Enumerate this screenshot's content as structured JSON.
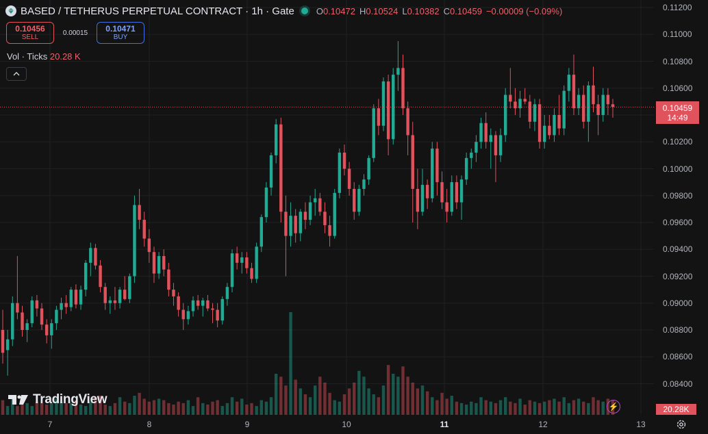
{
  "header": {
    "title": "BASED / TETHERUS PERPETUAL CONTRACT · 1h · Gate",
    "ohlc": {
      "o_label": "O",
      "o": "0.10472",
      "h_label": "H",
      "h": "0.10524",
      "l_label": "L",
      "l": "0.10382",
      "c_label": "C",
      "c": "0.10459",
      "change": "−0.00009 (−0.09%)"
    }
  },
  "trade": {
    "sell_price": "0.10456",
    "sell_label": "SELL",
    "spread": "0.00015",
    "buy_price": "0.10471",
    "buy_label": "BUY"
  },
  "volume_legend": {
    "label": "Vol · Ticks",
    "value": "20.28 K"
  },
  "price_label": {
    "price": "0.10459",
    "countdown": "14:49"
  },
  "volume_label": "20.28K",
  "y_axis": [
    "0.11200",
    "0.11000",
    "0.10800",
    "0.10600",
    "0.10400",
    "0.10200",
    "0.10000",
    "0.09800",
    "0.09600",
    "0.09400",
    "0.09200",
    "0.09000",
    "0.08800",
    "0.08600",
    "0.08400"
  ],
  "x_axis": [
    {
      "label": "7",
      "bold": false
    },
    {
      "label": "8",
      "bold": false
    },
    {
      "label": "9",
      "bold": false
    },
    {
      "label": "10",
      "bold": false
    },
    {
      "label": "11",
      "bold": true
    },
    {
      "label": "12",
      "bold": false
    },
    {
      "label": "13",
      "bold": false
    }
  ],
  "logo": "TradingView",
  "colors": {
    "up": "#22ab94",
    "down": "#e0525c",
    "background": "#131313",
    "grid": "#1f2024"
  },
  "chart_data": {
    "type": "candlestick",
    "price_axis_range": [
      0.083,
      0.1125
    ],
    "current_price": 0.10459,
    "candles": [
      [
        0.088,
        0.0895,
        0.0855,
        0.0863
      ],
      [
        0.0865,
        0.088,
        0.0846,
        0.0873
      ],
      [
        0.0873,
        0.0905,
        0.0868,
        0.09
      ],
      [
        0.09,
        0.0935,
        0.0888,
        0.0893
      ],
      [
        0.0893,
        0.0898,
        0.0875,
        0.088
      ],
      [
        0.088,
        0.0888,
        0.0871,
        0.0885
      ],
      [
        0.0885,
        0.0905,
        0.0882,
        0.0902
      ],
      [
        0.0902,
        0.0906,
        0.089,
        0.0896
      ],
      [
        0.0896,
        0.09,
        0.088,
        0.0884
      ],
      [
        0.0884,
        0.0888,
        0.087,
        0.0876
      ],
      [
        0.0876,
        0.0888,
        0.0866,
        0.0885
      ],
      [
        0.0885,
        0.0898,
        0.088,
        0.0895
      ],
      [
        0.0895,
        0.0904,
        0.0888,
        0.09
      ],
      [
        0.09,
        0.0906,
        0.0892,
        0.0897
      ],
      [
        0.0897,
        0.0912,
        0.0894,
        0.091
      ],
      [
        0.091,
        0.0914,
        0.0896,
        0.0899
      ],
      [
        0.0899,
        0.0913,
        0.0895,
        0.091
      ],
      [
        0.091,
        0.0932,
        0.0905,
        0.093
      ],
      [
        0.093,
        0.0945,
        0.092,
        0.0941
      ],
      [
        0.0941,
        0.0944,
        0.0925,
        0.0928
      ],
      [
        0.0928,
        0.0932,
        0.0908,
        0.0912
      ],
      [
        0.0912,
        0.0915,
        0.0895,
        0.09
      ],
      [
        0.09,
        0.0905,
        0.0892,
        0.0902
      ],
      [
        0.0902,
        0.0912,
        0.0895,
        0.09
      ],
      [
        0.09,
        0.0912,
        0.0896,
        0.091
      ],
      [
        0.091,
        0.092,
        0.0902,
        0.0903
      ],
      [
        0.0903,
        0.0922,
        0.09,
        0.092
      ],
      [
        0.092,
        0.098,
        0.0915,
        0.0973
      ],
      [
        0.0973,
        0.0985,
        0.0955,
        0.0962
      ],
      [
        0.0962,
        0.0968,
        0.0942,
        0.0948
      ],
      [
        0.0948,
        0.0955,
        0.093,
        0.0938
      ],
      [
        0.0938,
        0.0942,
        0.0915,
        0.0922
      ],
      [
        0.0922,
        0.0938,
        0.0918,
        0.0935
      ],
      [
        0.0935,
        0.094,
        0.092,
        0.0925
      ],
      [
        0.0925,
        0.093,
        0.0905,
        0.091
      ],
      [
        0.091,
        0.0915,
        0.0898,
        0.0905
      ],
      [
        0.0905,
        0.0908,
        0.089,
        0.0895
      ],
      [
        0.0895,
        0.09,
        0.088,
        0.0888
      ],
      [
        0.0888,
        0.0898,
        0.0884,
        0.0894
      ],
      [
        0.0894,
        0.0905,
        0.089,
        0.0902
      ],
      [
        0.0902,
        0.0906,
        0.0895,
        0.0898
      ],
      [
        0.0898,
        0.0904,
        0.089,
        0.0902
      ],
      [
        0.0902,
        0.0906,
        0.0894,
        0.0896
      ],
      [
        0.0896,
        0.09,
        0.0885,
        0.0895
      ],
      [
        0.0895,
        0.09,
        0.0882,
        0.0887
      ],
      [
        0.0887,
        0.0905,
        0.0884,
        0.0903
      ],
      [
        0.0903,
        0.0915,
        0.0898,
        0.0912
      ],
      [
        0.0912,
        0.094,
        0.0908,
        0.0937
      ],
      [
        0.0937,
        0.0942,
        0.0925,
        0.093
      ],
      [
        0.093,
        0.0938,
        0.0922,
        0.0934
      ],
      [
        0.0934,
        0.0938,
        0.0922,
        0.0926
      ],
      [
        0.0926,
        0.093,
        0.0915,
        0.0918
      ],
      [
        0.0918,
        0.0945,
        0.0915,
        0.0942
      ],
      [
        0.0942,
        0.0966,
        0.0938,
        0.0964
      ],
      [
        0.0964,
        0.099,
        0.096,
        0.0986
      ],
      [
        0.0986,
        0.1012,
        0.098,
        0.101
      ],
      [
        0.101,
        0.1037,
        0.1004,
        0.1033
      ],
      [
        0.1033,
        0.1038,
        0.096,
        0.0968
      ],
      [
        0.0968,
        0.098,
        0.092,
        0.095
      ],
      [
        0.095,
        0.0975,
        0.0942,
        0.0965
      ],
      [
        0.0965,
        0.097,
        0.0945,
        0.0952
      ],
      [
        0.0952,
        0.097,
        0.0946,
        0.0968
      ],
      [
        0.0968,
        0.0975,
        0.0955,
        0.0962
      ],
      [
        0.0962,
        0.098,
        0.0958,
        0.0975
      ],
      [
        0.0975,
        0.0985,
        0.0965,
        0.0978
      ],
      [
        0.0978,
        0.0982,
        0.0965,
        0.0968
      ],
      [
        0.0968,
        0.0975,
        0.0952,
        0.0958
      ],
      [
        0.0958,
        0.0965,
        0.0942,
        0.095
      ],
      [
        0.095,
        0.0985,
        0.0948,
        0.0982
      ],
      [
        0.0982,
        0.1015,
        0.0978,
        0.1012
      ],
      [
        0.1012,
        0.1018,
        0.0995,
        0.1
      ],
      [
        0.1,
        0.1005,
        0.098,
        0.0985
      ],
      [
        0.0985,
        0.099,
        0.0962,
        0.0968
      ],
      [
        0.0968,
        0.0988,
        0.0965,
        0.0985
      ],
      [
        0.0985,
        0.0996,
        0.098,
        0.0992
      ],
      [
        0.0992,
        0.101,
        0.0988,
        0.1008
      ],
      [
        0.1008,
        0.1048,
        0.1005,
        0.1045
      ],
      [
        0.1045,
        0.1052,
        0.1025,
        0.1032
      ],
      [
        0.1032,
        0.1068,
        0.1028,
        0.1065
      ],
      [
        0.1065,
        0.107,
        0.101,
        0.1022
      ],
      [
        0.1022,
        0.1075,
        0.1018,
        0.107
      ],
      [
        0.107,
        0.1095,
        0.1058,
        0.1075
      ],
      [
        0.1075,
        0.1085,
        0.104,
        0.1045
      ],
      [
        0.1045,
        0.105,
        0.101,
        0.1025
      ],
      [
        0.1025,
        0.1035,
        0.096,
        0.0985
      ],
      [
        0.0985,
        0.1,
        0.0955,
        0.0968
      ],
      [
        0.0968,
        0.1,
        0.0965,
        0.0988
      ],
      [
        0.0988,
        0.0992,
        0.097,
        0.0978
      ],
      [
        0.0978,
        0.102,
        0.0975,
        0.1015
      ],
      [
        0.1015,
        0.102,
        0.098,
        0.099
      ],
      [
        0.099,
        0.0998,
        0.097,
        0.0975
      ],
      [
        0.0975,
        0.0985,
        0.096,
        0.0968
      ],
      [
        0.0968,
        0.0995,
        0.0965,
        0.099
      ],
      [
        0.099,
        0.0995,
        0.097,
        0.0975
      ],
      [
        0.0975,
        0.0995,
        0.0962,
        0.0992
      ],
      [
        0.0992,
        0.1012,
        0.0988,
        0.1008
      ],
      [
        0.1008,
        0.1015,
        0.1,
        0.1012
      ],
      [
        0.1012,
        0.1025,
        0.1005,
        0.102
      ],
      [
        0.102,
        0.1038,
        0.1015,
        0.1034
      ],
      [
        0.1034,
        0.1042,
        0.1015,
        0.102
      ],
      [
        0.102,
        0.103,
        0.1,
        0.1025
      ],
      [
        0.1025,
        0.1028,
        0.099,
        0.101
      ],
      [
        0.101,
        0.103,
        0.1005,
        0.1025
      ],
      [
        0.1025,
        0.106,
        0.102,
        0.1055
      ],
      [
        0.1055,
        0.1075,
        0.1045,
        0.105
      ],
      [
        0.105,
        0.106,
        0.104,
        0.1045
      ],
      [
        0.1045,
        0.1058,
        0.1038,
        0.1052
      ],
      [
        0.1052,
        0.106,
        0.1048,
        0.105
      ],
      [
        0.105,
        0.1055,
        0.103,
        0.1035
      ],
      [
        0.1035,
        0.1052,
        0.1028,
        0.1048
      ],
      [
        0.1048,
        0.1052,
        0.1015,
        0.102
      ],
      [
        0.102,
        0.104,
        0.1015,
        0.1032
      ],
      [
        0.1032,
        0.104,
        0.1022,
        0.1025
      ],
      [
        0.1025,
        0.1045,
        0.102,
        0.104
      ],
      [
        0.104,
        0.1055,
        0.1025,
        0.103
      ],
      [
        0.103,
        0.1062,
        0.1025,
        0.1058
      ],
      [
        0.1058,
        0.1075,
        0.105,
        0.107
      ],
      [
        0.107,
        0.1085,
        0.104,
        0.1045
      ],
      [
        0.1045,
        0.106,
        0.104,
        0.1055
      ],
      [
        0.1055,
        0.1062,
        0.103,
        0.1035
      ],
      [
        0.1035,
        0.1065,
        0.102,
        0.1062
      ],
      [
        0.1062,
        0.1076,
        0.1042,
        0.1048
      ],
      [
        0.1048,
        0.1055,
        0.1025,
        0.104
      ],
      [
        0.104,
        0.106,
        0.1035,
        0.1055
      ],
      [
        0.1055,
        0.106,
        0.104,
        0.1048
      ],
      [
        0.1048,
        0.1052,
        0.1038,
        0.1046
      ]
    ],
    "volumes": [
      10,
      6,
      12,
      6,
      7,
      8,
      6,
      9,
      8,
      7,
      8,
      11,
      9,
      8,
      8,
      10,
      7,
      6,
      9,
      12,
      13,
      7,
      6,
      8,
      12,
      9,
      8,
      13,
      15,
      11,
      9,
      10,
      11,
      10,
      8,
      7,
      9,
      8,
      10,
      6,
      12,
      8,
      7,
      9,
      10,
      6,
      8,
      12,
      9,
      11,
      7,
      8,
      6,
      10,
      9,
      12,
      28,
      26,
      20,
      70,
      24,
      18,
      14,
      12,
      20,
      26,
      22,
      15,
      10,
      9,
      14,
      18,
      22,
      30,
      26,
      18,
      14,
      12,
      20,
      34,
      28,
      26,
      33,
      26,
      22,
      18,
      20,
      16,
      12,
      10,
      15,
      11,
      13,
      9,
      8,
      7,
      9,
      8,
      12,
      10,
      9,
      8,
      10,
      12,
      9,
      8,
      11,
      7,
      10,
      9,
      8,
      9,
      10,
      11,
      9,
      12,
      8,
      10,
      11,
      9,
      8,
      12,
      10,
      9,
      11,
      10,
      8
    ]
  }
}
